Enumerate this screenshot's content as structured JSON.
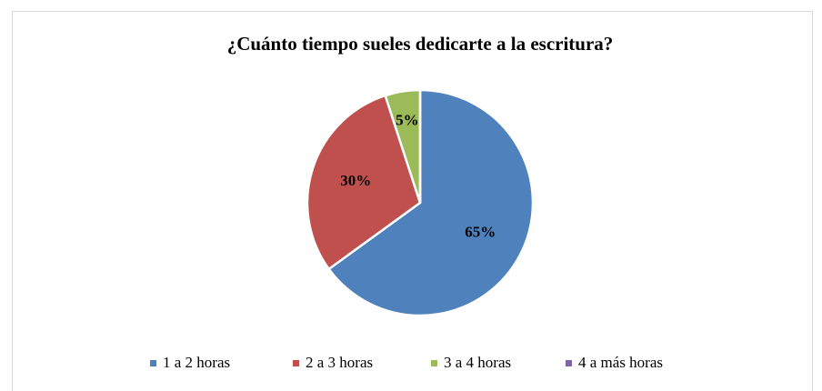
{
  "chart_data": {
    "type": "pie",
    "title": "¿Cuánto tiempo sueles dedicarte a la escritura?",
    "categories": [
      "1 a 2 horas",
      "2 a 3 horas",
      "3 a 4 horas",
      "4 a más horas"
    ],
    "values": [
      65,
      30,
      5,
      0
    ],
    "value_labels": [
      "65%",
      "30%",
      "5%",
      null
    ],
    "colors": [
      "#4f81bd",
      "#c0504d",
      "#9bbb59",
      "#8064a2"
    ],
    "legend": "bottom"
  }
}
